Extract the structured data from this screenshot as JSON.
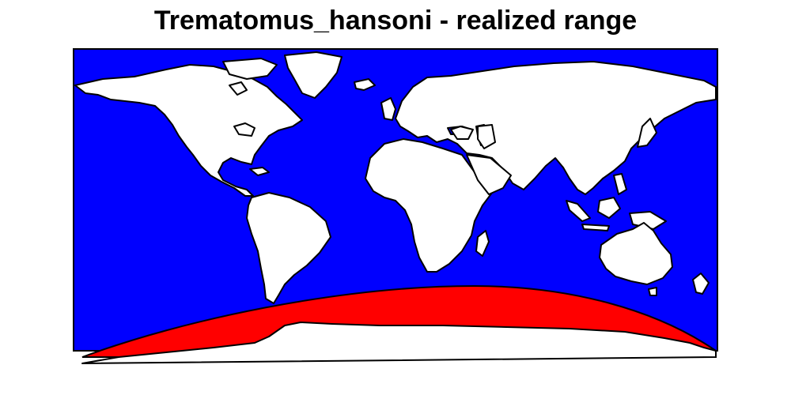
{
  "title": "Trematomus_hansoni - realized range",
  "colors": {
    "ocean": "#0000ff",
    "land": "#ffffff",
    "range": "#ff0000",
    "border": "#000000"
  },
  "map": {
    "projection": "equirectangular",
    "extent": "world",
    "range_region": "Southern Ocean / Antarctic coast"
  }
}
